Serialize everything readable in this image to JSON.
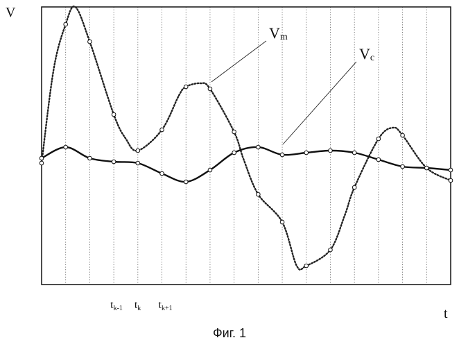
{
  "chart_data": {
    "type": "line",
    "ylabel": "V",
    "xlabel": "t",
    "caption": "Фиг. 1",
    "tick_labels": [
      {
        "base": "t",
        "sub": "k-1",
        "index": 3
      },
      {
        "base": "t",
        "sub": "k",
        "index": 4
      },
      {
        "base": "t",
        "sub": "k+1",
        "index": 5
      }
    ],
    "sample_count": 17,
    "xlim": [
      0,
      17
    ],
    "ylim": [
      0,
      400
    ],
    "grid_vertical": true,
    "series": [
      {
        "name": "Vm",
        "label_base": "V",
        "label_sub": "m",
        "style": "dotted",
        "color": "#222222",
        "x": [
          0,
          0.5,
          1,
          1.4,
          2,
          3,
          3.5,
          4,
          5,
          5.7,
          6,
          6.6,
          7,
          8,
          8.4,
          9,
          10,
          10.6,
          11,
          12,
          12.6,
          13,
          14,
          14.6,
          15,
          16,
          17
        ],
        "y": [
          175,
          310,
          375,
          400,
          350,
          245,
          210,
          193,
          223,
          272,
          285,
          290,
          282,
          220,
          180,
          130,
          90,
          27,
          27,
          50,
          100,
          140,
          210,
          226,
          215,
          168,
          150
        ]
      },
      {
        "name": "Vc",
        "label_base": "V",
        "label_sub": "c",
        "style": "solid",
        "color": "#111111",
        "x": [
          0,
          1,
          2,
          3,
          4,
          5,
          6,
          7,
          8,
          9,
          10,
          11,
          12,
          13,
          14,
          15,
          16,
          17
        ],
        "y": [
          182,
          198,
          182,
          177,
          175,
          160,
          148,
          165,
          190,
          198,
          187,
          190,
          193,
          190,
          180,
          170,
          168,
          165
        ]
      }
    ]
  }
}
